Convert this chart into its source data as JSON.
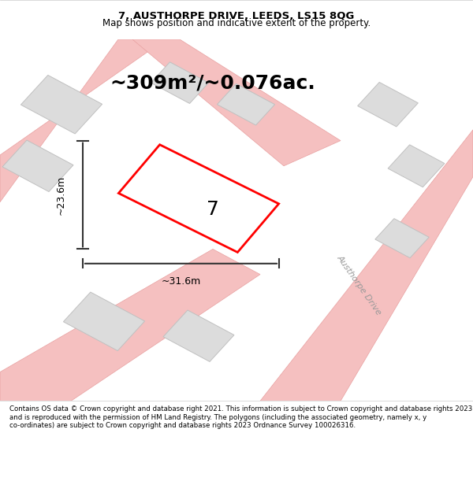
{
  "title_line1": "7, AUSTHORPE DRIVE, LEEDS, LS15 8QG",
  "title_line2": "Map shows position and indicative extent of the property.",
  "area_text": "~309m²/~0.076ac.",
  "plot_number": "7",
  "dim_width": "~31.6m",
  "dim_height": "~23.6m",
  "street_label": "Austhorpe Drive",
  "footer_text": "Contains OS data © Crown copyright and database right 2021. This information is subject to Crown copyright and database rights 2023 and is reproduced with the permission of HM Land Registry. The polygons (including the associated geometry, namely x, y co-ordinates) are subject to Crown copyright and database rights 2023 Ordnance Survey 100026316.",
  "bg_color": "#f0f0f0",
  "map_bg": "#f5f5f5",
  "plot_fill": "#ffffff",
  "plot_edge": "#ff0000",
  "road_color": "#f5c0c0",
  "road_outline": "#e8a0a0",
  "building_fill": "#dcdcdc",
  "building_edge": "#c0c0c0",
  "dim_line_color": "#333333",
  "header_bg": "#ffffff",
  "footer_bg": "#ffffff"
}
